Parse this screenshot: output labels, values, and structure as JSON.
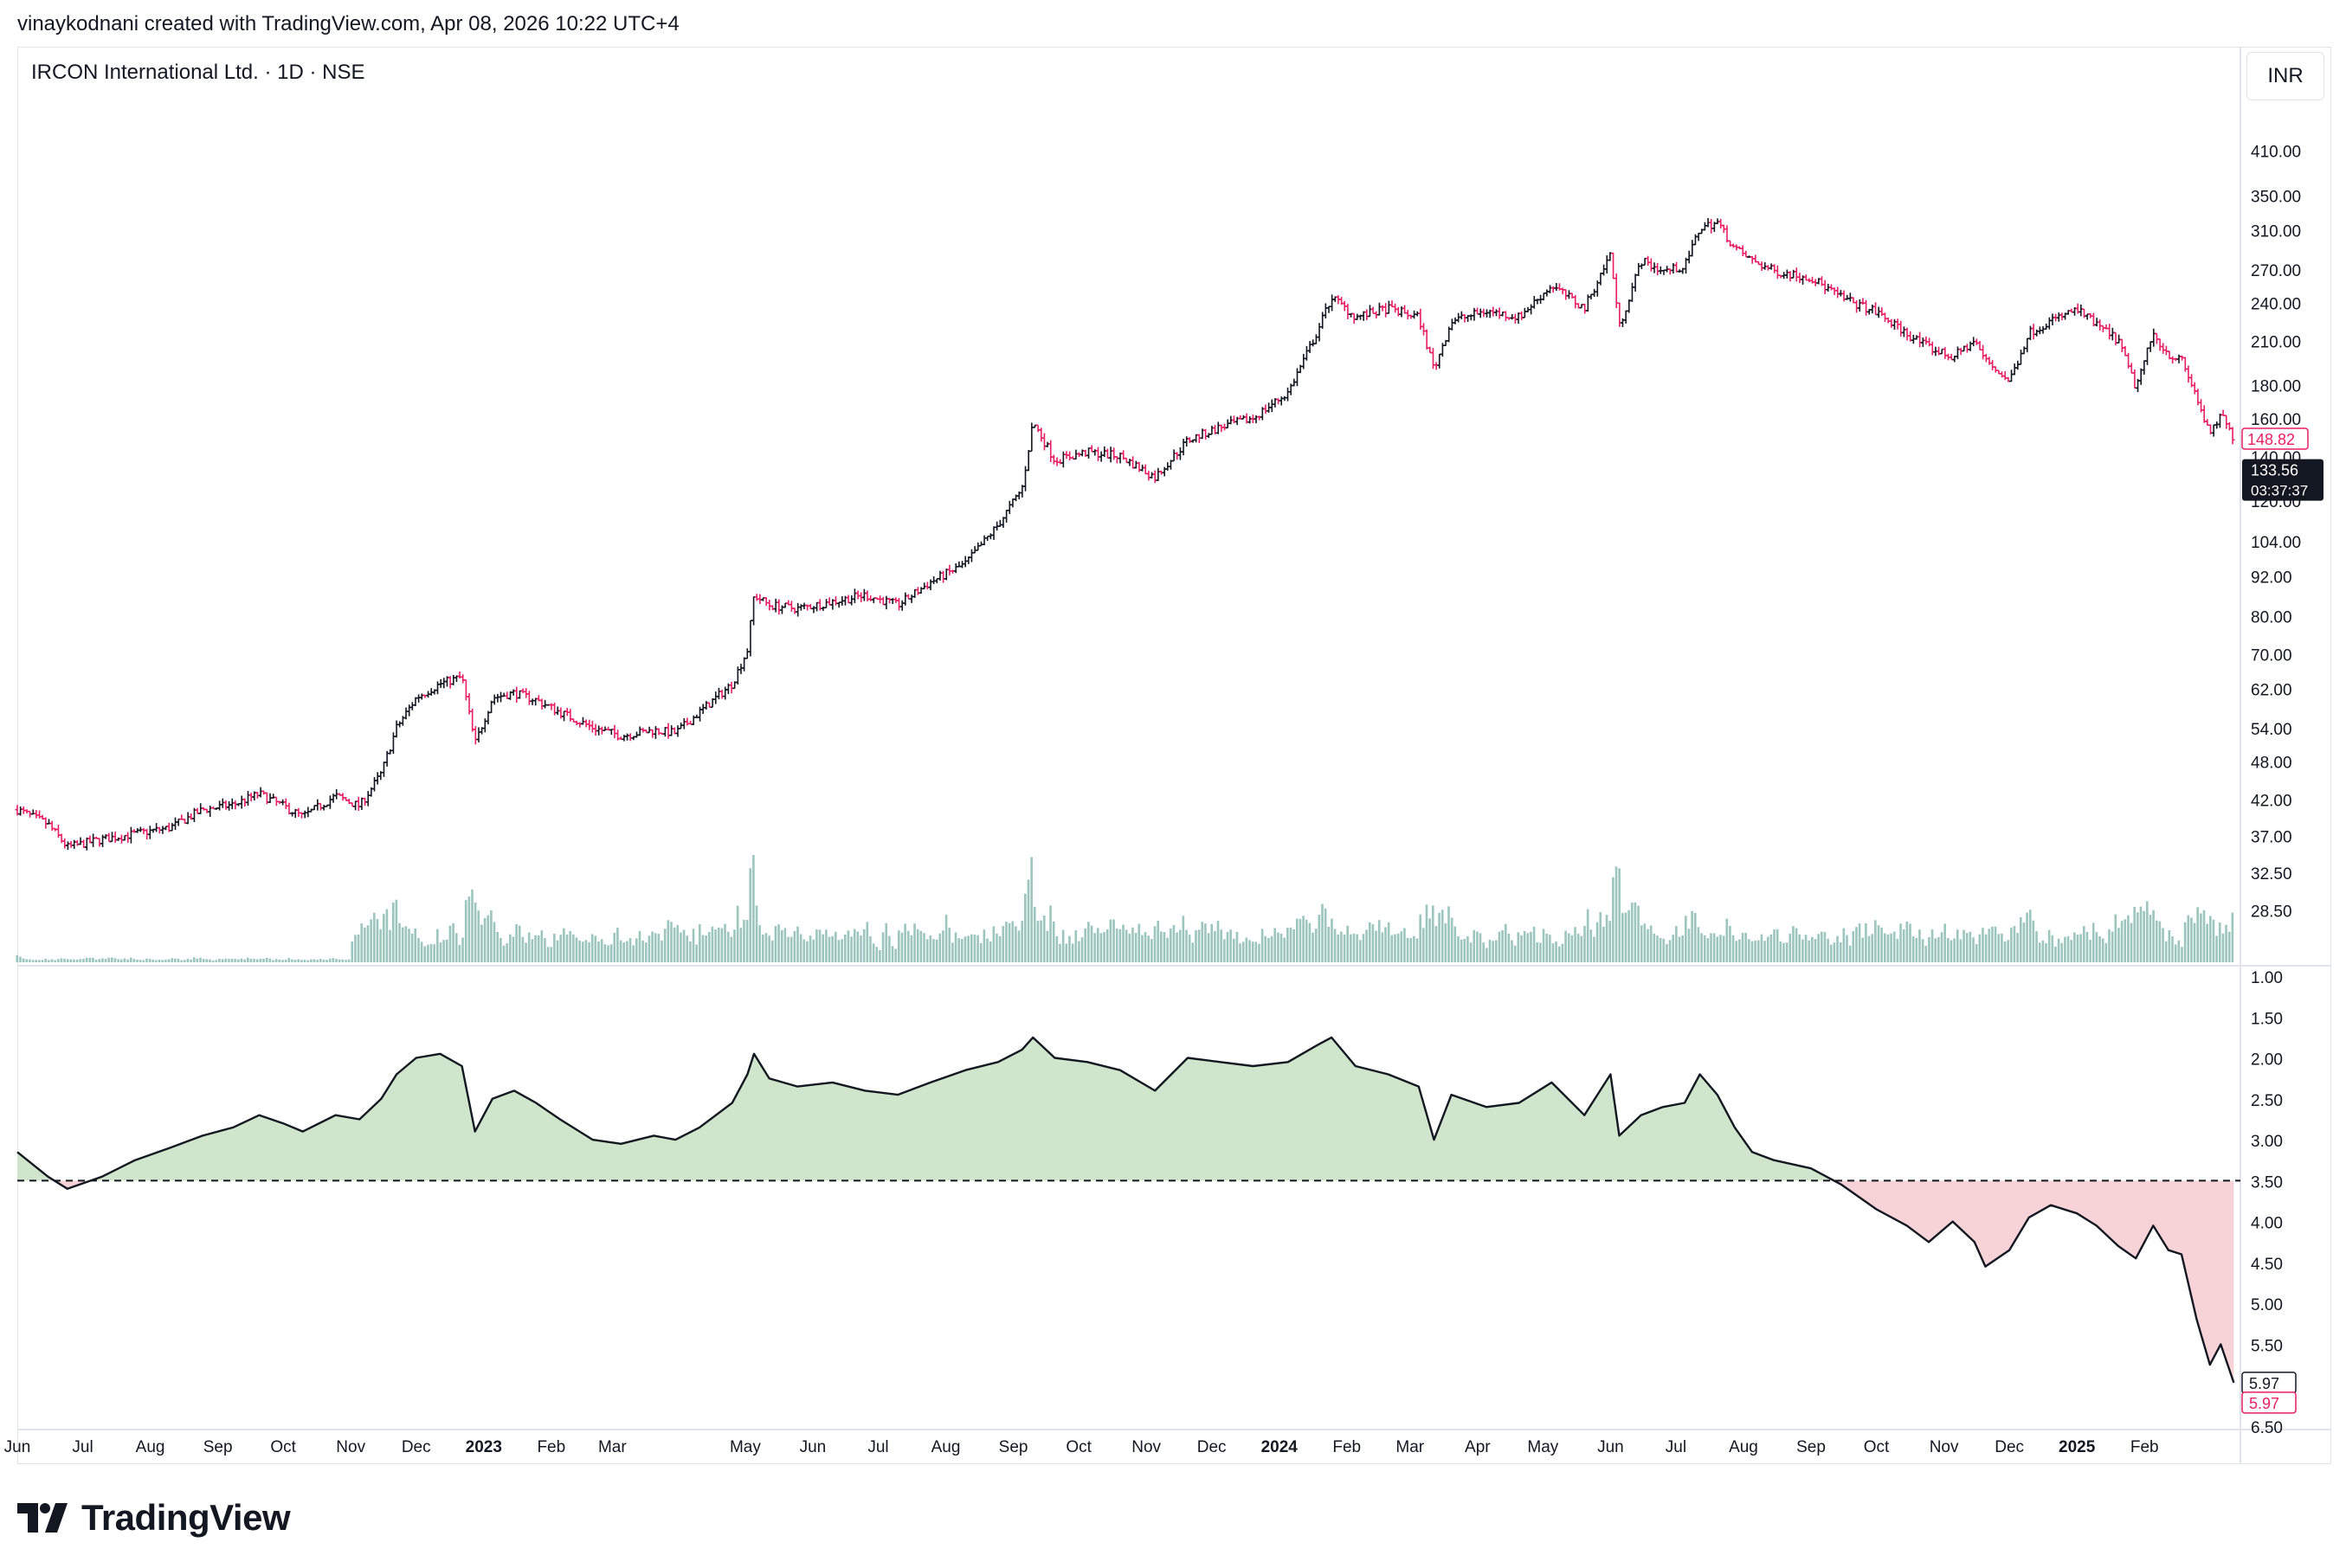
{
  "header": {
    "credit": "vinaykodnani created with TradingView.com, Apr 08, 2026 10:22 UTC+4"
  },
  "symbol": {
    "title": "IRCON International Ltd. · 1D · NSE",
    "currency": "INR"
  },
  "brand": {
    "name": "TradingView",
    "logo_icon": "tradingview-logo-icon"
  },
  "colors": {
    "up": "#131722",
    "down": "#e91e63",
    "volume": "#9cc5bd",
    "ratio_fill_up": "#cfe6cc",
    "ratio_fill_down": "#f7d3d8",
    "price_tag_bg": "#131722"
  },
  "chart_data": [
    {
      "type": "candlestick",
      "title": "IRCON International Ltd. · 1D · NSE",
      "y_scale": "log",
      "price_axis_ticks": [
        "410.00",
        "350.00",
        "310.00",
        "270.00",
        "240.00",
        "210.00",
        "180.00",
        "160.00",
        "140.00",
        "120.00",
        "104.00",
        "92.00",
        "80.00",
        "70.00",
        "62.00",
        "54.00",
        "48.00",
        "42.00",
        "37.00",
        "32.50",
        "28.50"
      ],
      "x_labels": [
        "Jun",
        "Jul",
        "Aug",
        "Sep",
        "Oct",
        "Nov",
        "Dec",
        "2023",
        "Feb",
        "Mar",
        "May",
        "Jun",
        "Jul",
        "Aug",
        "Sep",
        "Oct",
        "Nov",
        "Dec",
        "2024",
        "Feb",
        "Mar",
        "Apr",
        "May",
        "Jun",
        "Jul",
        "Aug",
        "Sep",
        "Oct",
        "Nov",
        "Dec",
        "2025",
        "Feb"
      ],
      "close_path": [
        [
          "2022-06-01",
          40.5
        ],
        [
          "2022-06-15",
          38.5
        ],
        [
          "2022-06-24",
          35.5
        ],
        [
          "2022-07-10",
          36.5
        ],
        [
          "2022-07-25",
          37.2
        ],
        [
          "2022-08-10",
          38.0
        ],
        [
          "2022-08-25",
          40.5
        ],
        [
          "2022-09-08",
          41.2
        ],
        [
          "2022-09-20",
          42.8
        ],
        [
          "2022-10-01",
          41.0
        ],
        [
          "2022-10-10",
          39.5
        ],
        [
          "2022-10-25",
          42.5
        ],
        [
          "2022-11-05",
          41.0
        ],
        [
          "2022-11-15",
          46.0
        ],
        [
          "2022-11-22",
          54.0
        ],
        [
          "2022-12-01",
          60.0
        ],
        [
          "2022-12-12",
          63.0
        ],
        [
          "2022-12-22",
          64.5
        ],
        [
          "2022-12-28",
          51.0
        ],
        [
          "2023-01-05",
          60.0
        ],
        [
          "2023-01-15",
          61.0
        ],
        [
          "2023-01-25",
          59.5
        ],
        [
          "2023-02-05",
          57.0
        ],
        [
          "2023-02-20",
          54.0
        ],
        [
          "2023-03-05",
          52.5
        ],
        [
          "2023-03-20",
          53.5
        ],
        [
          "2023-03-30",
          53.0
        ],
        [
          "2023-04-10",
          57.0
        ],
        [
          "2023-04-25",
          63.0
        ],
        [
          "2023-05-02",
          71.0
        ],
        [
          "2023-05-05",
          86.0
        ],
        [
          "2023-05-12",
          83.0
        ],
        [
          "2023-05-25",
          82.0
        ],
        [
          "2023-06-10",
          84.0
        ],
        [
          "2023-06-25",
          86.0
        ],
        [
          "2023-07-10",
          83.0
        ],
        [
          "2023-07-25",
          90.0
        ],
        [
          "2023-08-10",
          96.0
        ],
        [
          "2023-08-25",
          110.0
        ],
        [
          "2023-09-05",
          125.0
        ],
        [
          "2023-09-10",
          158.0
        ],
        [
          "2023-09-20",
          138.0
        ],
        [
          "2023-10-05",
          142.0
        ],
        [
          "2023-10-20",
          140.0
        ],
        [
          "2023-11-05",
          130.0
        ],
        [
          "2023-11-20",
          148.0
        ],
        [
          "2023-12-05",
          155.0
        ],
        [
          "2023-12-20",
          160.0
        ],
        [
          "2024-01-05",
          175.0
        ],
        [
          "2024-01-18",
          215.0
        ],
        [
          "2024-01-25",
          245.0
        ],
        [
          "2024-02-05",
          228.0
        ],
        [
          "2024-02-20",
          235.0
        ],
        [
          "2024-03-05",
          228.0
        ],
        [
          "2024-03-12",
          190.0
        ],
        [
          "2024-03-20",
          225.0
        ],
        [
          "2024-04-05",
          233.0
        ],
        [
          "2024-04-20",
          228.0
        ],
        [
          "2024-05-05",
          255.0
        ],
        [
          "2024-05-20",
          235.0
        ],
        [
          "2024-06-01",
          285.0
        ],
        [
          "2024-06-05",
          220.0
        ],
        [
          "2024-06-15",
          278.0
        ],
        [
          "2024-06-25",
          268.0
        ],
        [
          "2024-07-05",
          272.0
        ],
        [
          "2024-07-12",
          312.0
        ],
        [
          "2024-07-20",
          318.0
        ],
        [
          "2024-07-28",
          290.0
        ],
        [
          "2024-08-05",
          278.0
        ],
        [
          "2024-08-15",
          268.0
        ],
        [
          "2024-09-01",
          262.0
        ],
        [
          "2024-09-15",
          244.0
        ],
        [
          "2024-10-01",
          232.0
        ],
        [
          "2024-10-15",
          215.0
        ],
        [
          "2024-10-25",
          205.0
        ],
        [
          "2024-11-05",
          198.0
        ],
        [
          "2024-11-15",
          210.0
        ],
        [
          "2024-11-20",
          196.0
        ],
        [
          "2024-12-01",
          182.0
        ],
        [
          "2024-12-10",
          216.0
        ],
        [
          "2024-12-20",
          225.0
        ],
        [
          "2025-01-01",
          234.0
        ],
        [
          "2025-01-10",
          222.0
        ],
        [
          "2025-01-20",
          210.0
        ],
        [
          "2025-01-28",
          178.0
        ],
        [
          "2025-02-05",
          215.0
        ],
        [
          "2025-02-12",
          200.0
        ],
        [
          "2025-02-18",
          196.0
        ],
        [
          "2025-02-25",
          172.0
        ],
        [
          "2025-03-03",
          150.0
        ],
        [
          "2025-03-08",
          162.0
        ],
        [
          "2025-03-14",
          148.82
        ]
      ],
      "last_price_labels": [
        "148.82",
        "133.56",
        "03:37:37"
      ],
      "volume_bars": "shown"
    },
    {
      "type": "line",
      "y_scale": "inverted",
      "axis_ticks": [
        "1.00",
        "1.50",
        "2.00",
        "2.50",
        "3.00",
        "3.50",
        "4.00",
        "4.50",
        "5.00",
        "5.50",
        "6.50"
      ],
      "baseline": 3.5,
      "fill_above_baseline": "green",
      "fill_below_baseline": "red",
      "series": [
        [
          "2022-06-01",
          3.15
        ],
        [
          "2022-06-15",
          3.45
        ],
        [
          "2022-06-24",
          3.6
        ],
        [
          "2022-07-10",
          3.45
        ],
        [
          "2022-07-25",
          3.25
        ],
        [
          "2022-08-10",
          3.1
        ],
        [
          "2022-08-25",
          2.95
        ],
        [
          "2022-09-08",
          2.85
        ],
        [
          "2022-09-20",
          2.7
        ],
        [
          "2022-10-01",
          2.8
        ],
        [
          "2022-10-10",
          2.9
        ],
        [
          "2022-10-25",
          2.7
        ],
        [
          "2022-11-05",
          2.75
        ],
        [
          "2022-11-15",
          2.5
        ],
        [
          "2022-11-22",
          2.2
        ],
        [
          "2022-12-01",
          2.0
        ],
        [
          "2022-12-12",
          1.95
        ],
        [
          "2022-12-22",
          2.1
        ],
        [
          "2022-12-28",
          2.9
        ],
        [
          "2023-01-05",
          2.5
        ],
        [
          "2023-01-15",
          2.4
        ],
        [
          "2023-01-25",
          2.55
        ],
        [
          "2023-02-05",
          2.75
        ],
        [
          "2023-02-20",
          3.0
        ],
        [
          "2023-03-05",
          3.05
        ],
        [
          "2023-03-20",
          2.95
        ],
        [
          "2023-03-30",
          3.0
        ],
        [
          "2023-04-10",
          2.85
        ],
        [
          "2023-04-25",
          2.55
        ],
        [
          "2023-05-02",
          2.2
        ],
        [
          "2023-05-05",
          1.95
        ],
        [
          "2023-05-12",
          2.25
        ],
        [
          "2023-05-25",
          2.35
        ],
        [
          "2023-06-10",
          2.3
        ],
        [
          "2023-06-25",
          2.4
        ],
        [
          "2023-07-10",
          2.45
        ],
        [
          "2023-07-25",
          2.3
        ],
        [
          "2023-08-10",
          2.15
        ],
        [
          "2023-08-25",
          2.05
        ],
        [
          "2023-09-05",
          1.9
        ],
        [
          "2023-09-10",
          1.75
        ],
        [
          "2023-09-20",
          2.0
        ],
        [
          "2023-10-05",
          2.05
        ],
        [
          "2023-10-20",
          2.15
        ],
        [
          "2023-11-05",
          2.4
        ],
        [
          "2023-11-20",
          2.0
        ],
        [
          "2023-12-05",
          2.05
        ],
        [
          "2023-12-20",
          2.1
        ],
        [
          "2024-01-05",
          2.05
        ],
        [
          "2024-01-18",
          1.85
        ],
        [
          "2024-01-25",
          1.75
        ],
        [
          "2024-02-05",
          2.1
        ],
        [
          "2024-02-20",
          2.2
        ],
        [
          "2024-03-05",
          2.35
        ],
        [
          "2024-03-12",
          3.0
        ],
        [
          "2024-03-20",
          2.45
        ],
        [
          "2024-04-05",
          2.6
        ],
        [
          "2024-04-20",
          2.55
        ],
        [
          "2024-05-05",
          2.3
        ],
        [
          "2024-05-20",
          2.7
        ],
        [
          "2024-06-01",
          2.2
        ],
        [
          "2024-06-05",
          2.95
        ],
        [
          "2024-06-15",
          2.7
        ],
        [
          "2024-06-25",
          2.6
        ],
        [
          "2024-07-05",
          2.55
        ],
        [
          "2024-07-12",
          2.2
        ],
        [
          "2024-07-20",
          2.45
        ],
        [
          "2024-07-28",
          2.85
        ],
        [
          "2024-08-05",
          3.15
        ],
        [
          "2024-08-15",
          3.25
        ],
        [
          "2024-09-01",
          3.35
        ],
        [
          "2024-09-15",
          3.55
        ],
        [
          "2024-10-01",
          3.85
        ],
        [
          "2024-10-15",
          4.05
        ],
        [
          "2024-10-25",
          4.25
        ],
        [
          "2024-11-05",
          4.0
        ],
        [
          "2024-11-15",
          4.25
        ],
        [
          "2024-11-20",
          4.55
        ],
        [
          "2024-12-01",
          4.35
        ],
        [
          "2024-12-10",
          3.95
        ],
        [
          "2024-12-20",
          3.8
        ],
        [
          "2025-01-01",
          3.9
        ],
        [
          "2025-01-10",
          4.05
        ],
        [
          "2025-01-20",
          4.3
        ],
        [
          "2025-01-28",
          4.45
        ],
        [
          "2025-02-05",
          4.05
        ],
        [
          "2025-02-12",
          4.35
        ],
        [
          "2025-02-18",
          4.4
        ],
        [
          "2025-02-25",
          5.2
        ],
        [
          "2025-03-03",
          5.75
        ],
        [
          "2025-03-08",
          5.5
        ],
        [
          "2025-03-14",
          5.97
        ]
      ],
      "last_value_labels": [
        "5.97",
        "5.97"
      ]
    }
  ]
}
